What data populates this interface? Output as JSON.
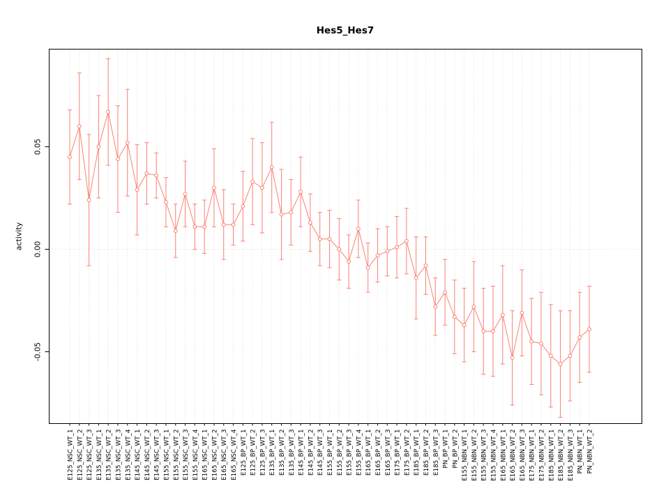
{
  "figure": {
    "title": "Hes5_Hes7",
    "y_axis_label": "activity"
  },
  "chart_data": {
    "type": "line",
    "title": "Hes5_Hes7",
    "xlabel": "",
    "ylabel": "activity",
    "ylim": [
      -0.085,
      0.097
    ],
    "yticks": [
      0.05,
      0,
      -0.05
    ],
    "ytick_labels": [
      "0.05",
      "0.00",
      "-0.05"
    ],
    "legend": "none",
    "grid": {
      "vertical_per_category": true,
      "zero_line": true,
      "style": "dotted",
      "color": "#d4d4d4"
    },
    "series_color": "#FA8072",
    "point_style": "open-circle",
    "error_bars": true,
    "categories": [
      "E125_NSC_WT_1",
      "E125_NSC_WT_2",
      "E125_NSC_WT_3",
      "E135_NSC_WT_1",
      "E135_NSC_WT_2",
      "E135_NSC_WT_3",
      "E135_NSC_WT_4",
      "E145_NSC_WT_1",
      "E145_NSC_WT_2",
      "E145_NSC_WT_3",
      "E155_NSC_WT_1",
      "E155_NSC_WT_2",
      "E155_NSC_WT_3",
      "E155_NSC_WT_4",
      "E165_NSC_WT_1",
      "E165_NSC_WT_2",
      "E165_NSC_WT_3",
      "E165_NSC_WT_4",
      "E125_BP_WT_1",
      "E125_BP_WT_2",
      "E125_BP_WT_3",
      "E135_BP_WT_1",
      "E135_BP_WT_2",
      "E135_BP_WT_3",
      "E145_BP_WT_1",
      "E145_BP_WT_2",
      "E145_BP_WT_3",
      "E155_BP_WT_1",
      "E155_BP_WT_2",
      "E155_BP_WT_3",
      "E155_BP_WT_4",
      "E165_BP_WT_1",
      "E165_BP_WT_2",
      "E165_BP_WT_3",
      "E175_BP_WT_1",
      "E175_BP_WT_2",
      "E185_BP_WT_1",
      "E185_BP_WT_2",
      "E185_BP_WT_3",
      "PN_BP_WT_1",
      "PN_BP_WT_2",
      "E155_NBN_WT_1",
      "E155_NBN_WT_2",
      "E155_NBN_WT_3",
      "E155_NBN_WT_4",
      "E165_NBN_WT_1",
      "E165_NBN_WT_2",
      "E165_NBN_WT_3",
      "E175_NBN_WT_1",
      "E175_NBN_WT_2",
      "E185_NBN_WT_1",
      "E185_NBN_WT_2",
      "E185_NBN_WT_3",
      "PN_NBN_WT_1",
      "PN_NBN_WT_2"
    ],
    "series": [
      {
        "name": "activity",
        "values": [
          0.045,
          0.06,
          0.024,
          0.05,
          0.067,
          0.044,
          0.052,
          0.029,
          0.037,
          0.036,
          0.023,
          0.009,
          0.027,
          0.011,
          0.011,
          0.03,
          0.012,
          0.012,
          0.021,
          0.033,
          0.03,
          0.04,
          0.017,
          0.018,
          0.028,
          0.013,
          0.005,
          0.005,
          0.0,
          -0.006,
          0.01,
          -0.009,
          -0.003,
          -0.001,
          0.001,
          0.004,
          -0.014,
          -0.008,
          -0.028,
          -0.021,
          -0.033,
          -0.037,
          -0.028,
          -0.04,
          -0.04,
          -0.032,
          -0.053,
          -0.031,
          -0.045,
          -0.046,
          -0.052,
          -0.056,
          -0.052,
          -0.043,
          -0.039
        ],
        "error": [
          0.023,
          0.026,
          0.032,
          0.025,
          0.026,
          0.026,
          0.026,
          0.022,
          0.015,
          0.011,
          0.012,
          0.013,
          0.016,
          0.011,
          0.013,
          0.019,
          0.017,
          0.01,
          0.017,
          0.021,
          0.022,
          0.022,
          0.022,
          0.016,
          0.017,
          0.014,
          0.013,
          0.014,
          0.015,
          0.013,
          0.014,
          0.012,
          0.013,
          0.012,
          0.015,
          0.016,
          0.02,
          0.014,
          0.014,
          0.016,
          0.018,
          0.018,
          0.022,
          0.021,
          0.022,
          0.024,
          0.023,
          0.021,
          0.021,
          0.025,
          0.025,
          0.026,
          0.022,
          0.022,
          0.021
        ]
      }
    ]
  }
}
